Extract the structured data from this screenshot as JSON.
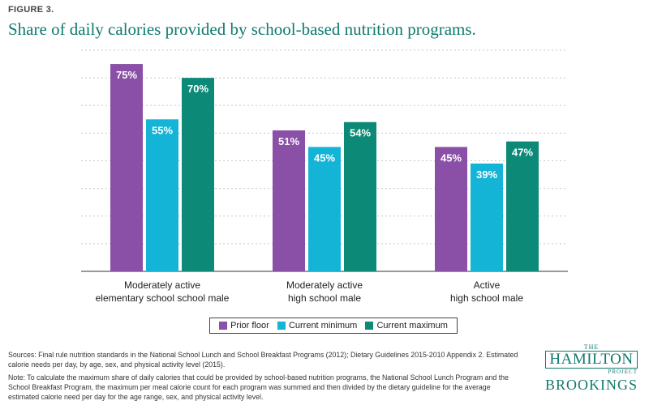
{
  "figure": {
    "label": "FIGURE 3.",
    "title": "Share of daily calories provided by school-based nutrition programs."
  },
  "chart_data": {
    "type": "bar",
    "title": "Share of daily calories provided by school-based nutrition programs.",
    "categories": [
      "Moderately active\nelementary school school male",
      "Moderately active\nhigh school male",
      "Active\nhigh school male"
    ],
    "series": [
      {
        "name": "Prior floor",
        "values": [
          75,
          51,
          45
        ],
        "labels": [
          "75%",
          "51%",
          "45%"
        ],
        "color": "#8a4fa6"
      },
      {
        "name": "Current minimum",
        "values": [
          55,
          45,
          39
        ],
        "labels": [
          "55%",
          "45%",
          "39%"
        ],
        "color": "#14b4d6"
      },
      {
        "name": "Current maximum",
        "values": [
          70,
          54,
          47
        ],
        "labels": [
          "70%",
          "54%",
          "47%"
        ],
        "color": "#0c8a77"
      }
    ],
    "ylim": [
      0,
      80
    ],
    "grid": true,
    "legend_position": "bottom"
  },
  "sources": "Sources: Final rule nutrition standards in the National School Lunch and School Breakfast Programs (2012); Dietary Guidelines 2015-2010 Appendix 2. Estimated calorie needs per day, by age, sex, and physical activity level (2015).",
  "note": "Note: To calculate the maximum share of daily calories that could be provided by school-based nutrition programs, the National School Lunch Program and the School Breakfast Program, the maximum per meal calorie count for each program was summed and then divided by the dietary guideline for the average estimated calorie need per day for the age range, sex, and physical activity level.",
  "logo": {
    "the": "THE",
    "hamilton": "HAMILTON",
    "project": "PROJECT",
    "brookings": "BROOKINGS"
  }
}
